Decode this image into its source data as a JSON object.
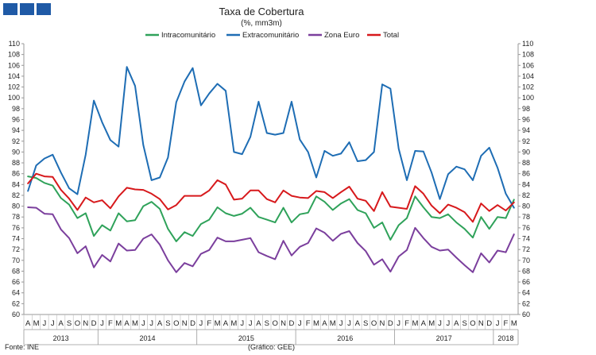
{
  "header": {
    "logo_icon": "gee-logo-blocks"
  },
  "chart_data": {
    "type": "line",
    "title": "Taxa de Cobertura",
    "subtitle": "(%, mm3m)",
    "ylim": [
      60,
      110
    ],
    "ytick_step": 2,
    "grid": false,
    "legend_position": "top",
    "months": [
      "A",
      "M",
      "J",
      "J",
      "A",
      "S",
      "O",
      "N",
      "D",
      "J",
      "F",
      "M",
      "A",
      "M",
      "J",
      "J",
      "A",
      "S",
      "O",
      "N",
      "D",
      "J",
      "F",
      "M",
      "A",
      "M",
      "J",
      "J",
      "A",
      "S",
      "O",
      "N",
      "D",
      "J",
      "F",
      "M",
      "A",
      "M",
      "J",
      "J",
      "A",
      "S",
      "O",
      "N",
      "D",
      "J",
      "F",
      "M",
      "A",
      "M",
      "J",
      "J",
      "A",
      "S",
      "O",
      "N",
      "D",
      "J",
      "F",
      "M"
    ],
    "years": [
      {
        "label": "2013",
        "start": 0,
        "end": 8
      },
      {
        "label": "2014",
        "start": 9,
        "end": 20
      },
      {
        "label": "2015",
        "start": 21,
        "end": 32
      },
      {
        "label": "2016",
        "start": 33,
        "end": 44
      },
      {
        "label": "2017",
        "start": 45,
        "end": 56
      },
      {
        "label": "2018",
        "start": 57,
        "end": 59
      }
    ],
    "series": [
      {
        "name": "Intracomunitário",
        "color": "#2fa25a",
        "values": [
          85.5,
          85.2,
          84.3,
          83.8,
          81.5,
          80.3,
          77.8,
          78.7,
          74.5,
          76.5,
          75.5,
          78.7,
          77.2,
          77.4,
          80.0,
          80.8,
          79.5,
          75.8,
          73.5,
          75.2,
          74.5,
          76.7,
          77.5,
          79.8,
          78.7,
          78.2,
          78.6,
          79.7,
          78.0,
          77.5,
          77.0,
          79.7,
          77.0,
          78.5,
          78.8,
          81.8,
          80.8,
          79.3,
          80.5,
          81.3,
          79.3,
          78.7,
          76.0,
          77.0,
          73.8,
          76.5,
          77.8,
          81.8,
          79.8,
          78.0,
          77.8,
          78.5,
          77.0,
          75.8,
          74.2,
          78.0,
          75.8,
          78.0,
          77.8,
          81.2
        ]
      },
      {
        "name": "Extracomunitário",
        "color": "#1e6db4",
        "values": [
          82.8,
          87.5,
          88.8,
          89.5,
          86.2,
          83.3,
          82.2,
          89.5,
          99.5,
          95.5,
          92.2,
          91.0,
          105.7,
          102.2,
          91.3,
          84.8,
          85.3,
          89.0,
          99.2,
          103.0,
          105.5,
          98.6,
          100.8,
          102.6,
          101.3,
          90.0,
          89.6,
          92.8,
          99.3,
          93.5,
          93.2,
          93.5,
          99.3,
          92.3,
          90.0,
          85.3,
          90.2,
          89.3,
          89.7,
          91.8,
          88.3,
          88.5,
          90.0,
          102.5,
          101.7,
          90.6,
          84.8,
          90.2,
          90.1,
          86.2,
          81.3,
          85.9,
          87.3,
          86.8,
          84.8,
          89.3,
          90.8,
          87.1,
          82.3,
          79.7
        ]
      },
      {
        "name": "Zona Euro",
        "color": "#7b3f9d",
        "values": [
          79.8,
          79.7,
          78.6,
          78.5,
          75.7,
          74.1,
          71.3,
          72.6,
          68.7,
          71.0,
          69.8,
          73.1,
          71.8,
          71.9,
          74.0,
          74.8,
          72.9,
          70.0,
          67.8,
          69.5,
          68.9,
          71.2,
          71.9,
          74.2,
          73.5,
          73.5,
          73.8,
          74.1,
          71.5,
          70.8,
          70.2,
          73.6,
          70.9,
          72.5,
          73.2,
          75.9,
          75.1,
          73.6,
          74.9,
          75.4,
          73.2,
          71.7,
          69.2,
          70.2,
          67.9,
          70.7,
          71.9,
          76.0,
          74.1,
          72.5,
          71.8,
          72.0,
          70.5,
          69.1,
          67.8,
          71.3,
          69.6,
          71.8,
          71.5,
          74.8
        ]
      },
      {
        "name": "Total",
        "color": "#d7191c",
        "values": [
          84.2,
          86.0,
          85.5,
          85.4,
          83.0,
          81.4,
          79.3,
          81.6,
          80.7,
          81.1,
          79.6,
          81.8,
          83.4,
          83.1,
          83.0,
          82.3,
          81.3,
          79.4,
          80.2,
          81.9,
          81.9,
          81.9,
          82.9,
          84.8,
          84.0,
          81.2,
          81.4,
          82.9,
          82.9,
          81.3,
          80.7,
          82.9,
          81.9,
          81.6,
          81.5,
          82.8,
          82.6,
          81.5,
          82.6,
          83.6,
          81.4,
          81.0,
          79.1,
          82.6,
          79.9,
          79.7,
          79.5,
          83.7,
          82.3,
          80.1,
          78.7,
          80.3,
          79.7,
          78.9,
          77.1,
          80.5,
          79.1,
          80.2,
          79.2,
          80.7
        ]
      }
    ]
  },
  "footer": {
    "source": "Fonte: INE",
    "credit": "(Gráfico: GEE)"
  }
}
